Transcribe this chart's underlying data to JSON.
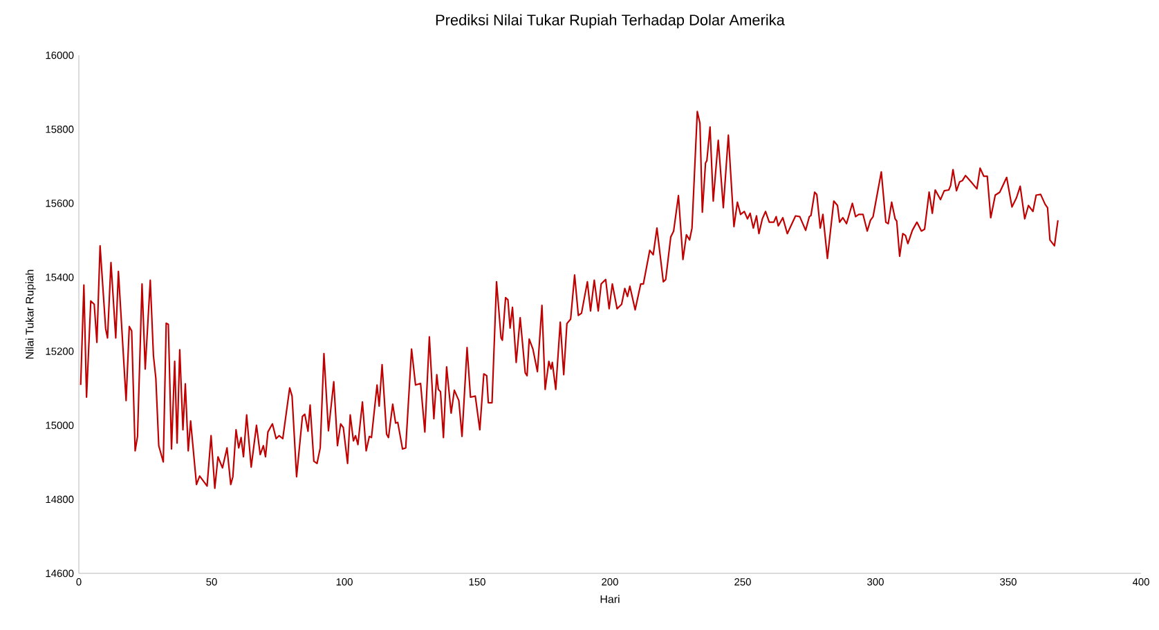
{
  "chart_data": {
    "type": "line",
    "title": "Prediksi Nilai Tukar Rupiah Terhadap Dolar Amerika",
    "xlabel": "Hari",
    "ylabel": "Nilai Tukar Rupiah",
    "xlim": [
      0,
      400
    ],
    "xticks": [
      0,
      50,
      100,
      150,
      200,
      250,
      300,
      350,
      400
    ],
    "ylim": [
      14600,
      16000
    ],
    "yticks": [
      14600,
      14800,
      15000,
      15200,
      15400,
      15600,
      15800,
      16000
    ],
    "marker": "none",
    "x": [
      0.7,
      1.9,
      2.9,
      4.5,
      5.8,
      6.8,
      8.0,
      10.1,
      10.8,
      12.1,
      13.9,
      14.9,
      17.8,
      19.0,
      19.9,
      21.2,
      22.1,
      23.8,
      25.0,
      26.9,
      28.1,
      29.0,
      30.1,
      31.8,
      32.9,
      33.7,
      34.9,
      36.1,
      37.0,
      38.0,
      39.2,
      40.1,
      41.2,
      42.1,
      44.3,
      45.5,
      48.3,
      49.8,
      51.2,
      52.4,
      54.1,
      55.8,
      57.2,
      58.0,
      59.2,
      60.2,
      61.1,
      62.0,
      63.2,
      64.9,
      66.9,
      68.3,
      69.5,
      70.3,
      71.2,
      72.9,
      74.3,
      75.4,
      76.8,
      79.4,
      80.3,
      82.0,
      84.2,
      85.1,
      86.3,
      87.1,
      88.5,
      89.7,
      90.9,
      92.3,
      94.0,
      96.0,
      97.4,
      98.6,
      99.6,
      101.2,
      102.2,
      103.4,
      104.2,
      105.1,
      106.8,
      108.2,
      109.4,
      110.2,
      112.3,
      113.1,
      114.2,
      115.9,
      116.6,
      118.2,
      119.3,
      120.1,
      121.9,
      123.1,
      125.3,
      126.8,
      128.7,
      130.3,
      132.0,
      133.7,
      134.8,
      135.4,
      136.2,
      137.3,
      138.5,
      140.2,
      141.4,
      143.1,
      144.3,
      146.2,
      147.5,
      149.3,
      151.0,
      152.5,
      153.6,
      154.2,
      155.6,
      157.3,
      159.0,
      159.5,
      160.7,
      161.6,
      162.4,
      163.3,
      164.7,
      166.2,
      168.1,
      168.8,
      169.6,
      171.0,
      172.7,
      174.4,
      175.6,
      177.0,
      177.8,
      178.3,
      179.6,
      181.3,
      182.6,
      183.8,
      185.2,
      186.7,
      188.1,
      189.3,
      191.5,
      192.7,
      194.1,
      195.6,
      196.7,
      198.4,
      199.7,
      200.9,
      202.7,
      204.4,
      205.6,
      206.6,
      207.5,
      209.5,
      211.6,
      212.6,
      215.0,
      216.3,
      217.7,
      220.1,
      221.0,
      222.9,
      224.0,
      225.8,
      227.5,
      228.8,
      230.0,
      230.9,
      232.9,
      233.9,
      234.8,
      236.0,
      236.5,
      237.7,
      238.9,
      240.8,
      242.7,
      244.6,
      246.7,
      248.0,
      249.2,
      250.6,
      251.8,
      252.8,
      254.0,
      255.2,
      256.1,
      257.4,
      258.6,
      260.0,
      261.7,
      262.6,
      263.4,
      265.1,
      266.8,
      269.9,
      271.5,
      273.7,
      275.1,
      275.7,
      277.1,
      277.9,
      279.2,
      280.2,
      281.9,
      284.3,
      285.7,
      286.5,
      287.7,
      289.1,
      291.3,
      292.5,
      293.7,
      295.3,
      296.9,
      298.1,
      299.1,
      302.2,
      303.9,
      304.8,
      306.1,
      307.4,
      308.0,
      309.1,
      310.3,
      311.3,
      312.2,
      313.9,
      315.6,
      317.3,
      318.5,
      320.2,
      321.4,
      322.5,
      324.5,
      325.9,
      327.6,
      328.3,
      329.2,
      330.5,
      331.7,
      332.7,
      333.9,
      336.0,
      338.2,
      339.4,
      340.8,
      342.1,
      343.4,
      345.1,
      346.8,
      349.4,
      351.4,
      353.1,
      354.5,
      356.2,
      357.6,
      359.3,
      360.5,
      362.2,
      363.9,
      364.8,
      365.7,
      367.4,
      368.7
    ],
    "series": [
      {
        "color": "#c00000",
        "values": [
          15109,
          15379,
          15076,
          15336,
          15327,
          15224,
          15485,
          15261,
          15236,
          15440,
          15236,
          15416,
          15067,
          15267,
          15255,
          14931,
          14970,
          15382,
          15152,
          15392,
          15188,
          15127,
          14945,
          14901,
          15276,
          15273,
          14936,
          15173,
          14952,
          15204,
          14988,
          15112,
          14931,
          15012,
          14840,
          14863,
          14836,
          14972,
          14830,
          14915,
          14885,
          14939,
          14840,
          14861,
          14988,
          14939,
          14967,
          14915,
          15028,
          14887,
          15000,
          14921,
          14945,
          14915,
          14982,
          15004,
          14964,
          14972,
          14964,
          15101,
          15079,
          14861,
          15024,
          15030,
          14984,
          15055,
          14903,
          14897,
          14939,
          15194,
          14985,
          15118,
          14945,
          15004,
          14994,
          14897,
          15028,
          14958,
          14972,
          14948,
          15063,
          14931,
          14970,
          14967,
          15109,
          15052,
          15164,
          14976,
          14967,
          15057,
          15006,
          15008,
          14936,
          14939,
          15206,
          15109,
          15113,
          14982,
          15239,
          15018,
          15137,
          15097,
          15091,
          14967,
          15158,
          15033,
          15095,
          15067,
          14970,
          15210,
          15076,
          15079,
          14988,
          15139,
          15134,
          15061,
          15061,
          15388,
          15236,
          15230,
          15345,
          15339,
          15263,
          15319,
          15170,
          15291,
          15142,
          15134,
          15233,
          15206,
          15145,
          15324,
          15097,
          15173,
          15152,
          15170,
          15097,
          15279,
          15137,
          15275,
          15287,
          15406,
          15297,
          15303,
          15388,
          15309,
          15392,
          15309,
          15382,
          15394,
          15315,
          15382,
          15315,
          15327,
          15370,
          15348,
          15376,
          15312,
          15382,
          15382,
          15473,
          15461,
          15533,
          15388,
          15394,
          15509,
          15525,
          15621,
          15448,
          15515,
          15501,
          15533,
          15848,
          15816,
          15576,
          15709,
          15715,
          15806,
          15606,
          15770,
          15588,
          15784,
          15537,
          15603,
          15570,
          15578,
          15558,
          15573,
          15533,
          15566,
          15518,
          15558,
          15578,
          15549,
          15549,
          15564,
          15539,
          15561,
          15518,
          15566,
          15564,
          15527,
          15564,
          15567,
          15630,
          15624,
          15533,
          15570,
          15451,
          15606,
          15594,
          15549,
          15561,
          15545,
          15600,
          15564,
          15570,
          15570,
          15525,
          15554,
          15564,
          15685,
          15549,
          15545,
          15603,
          15558,
          15552,
          15457,
          15518,
          15513,
          15491,
          15527,
          15549,
          15525,
          15530,
          15630,
          15573,
          15636,
          15610,
          15634,
          15636,
          15648,
          15691,
          15634,
          15658,
          15661,
          15675,
          15658,
          15639,
          15695,
          15673,
          15673,
          15561,
          15622,
          15630,
          15670,
          15590,
          15615,
          15646,
          15558,
          15594,
          15578,
          15622,
          15624,
          15597,
          15588,
          15501,
          15485,
          15554
        ]
      }
    ]
  }
}
